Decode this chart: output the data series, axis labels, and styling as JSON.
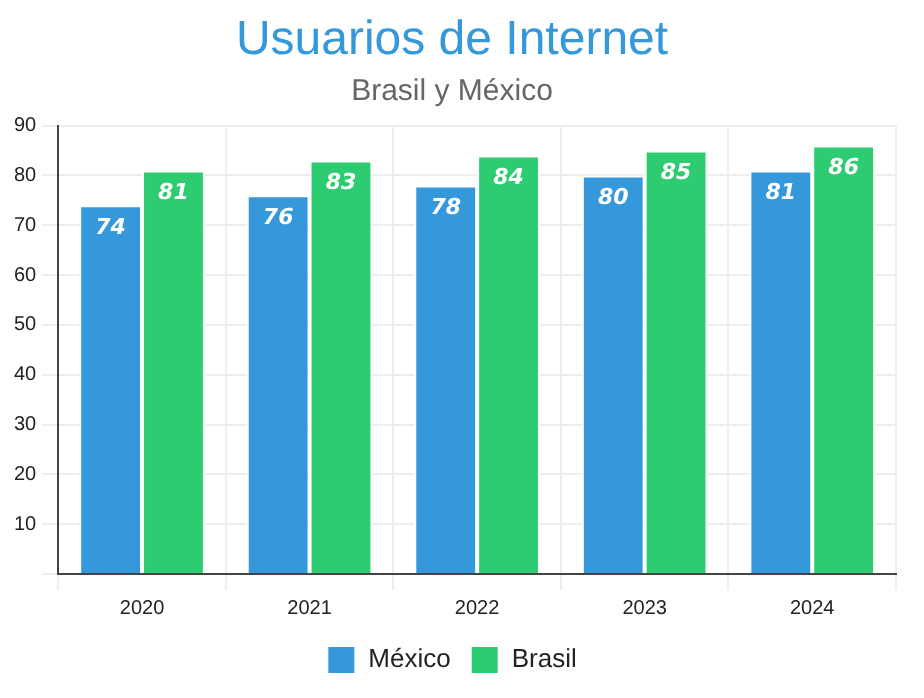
{
  "chart_data": {
    "type": "bar",
    "title": "Usuarios de Internet",
    "subtitle": "Brasil y México",
    "categories": [
      "2020",
      "2021",
      "2022",
      "2023",
      "2024"
    ],
    "series": [
      {
        "name": "México",
        "color": "#3498db",
        "values": [
          74,
          76,
          78,
          80,
          81
        ]
      },
      {
        "name": "Brasil",
        "color": "#2ecc71",
        "values": [
          81,
          83,
          84,
          85,
          86
        ]
      }
    ],
    "ylim": [
      0,
      90
    ],
    "yticks": [
      {
        "value": 0,
        "label": null
      },
      10,
      20,
      30,
      40,
      50,
      60,
      70,
      80,
      90
    ],
    "grid": true,
    "legend": "bottom",
    "data_labels": true
  }
}
